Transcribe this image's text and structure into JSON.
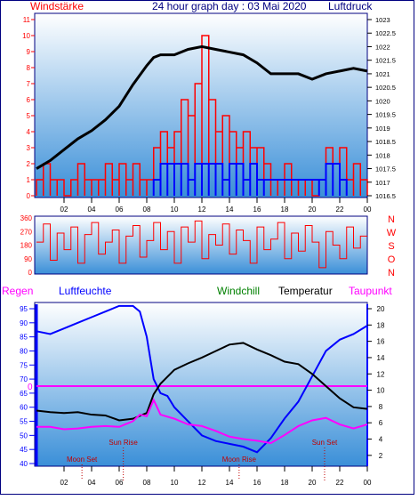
{
  "colors": {
    "frame": "#000080",
    "plot_top": "#ffffff",
    "plot_bottom": "#3a8fd8",
    "wind_red": "#ff0000",
    "wind_blue": "#0000ff",
    "pressure": "#000000",
    "humidity": "#0000ff",
    "temperature": "#000000",
    "dewpoint": "#ff00ff",
    "sun_moon": "#c00000"
  },
  "chart_data": [
    {
      "type": "line",
      "title": "24 hour graph day : 03 Mai 2020",
      "left_label": "Windstärke",
      "right_label": "Luftdruck",
      "x_tick_labels": [
        "02",
        "04",
        "06",
        "08",
        "10",
        "12",
        "14",
        "16",
        "18",
        "20",
        "22",
        "00"
      ],
      "left_ticks": [
        "0",
        "1",
        "2",
        "3",
        "4",
        "5",
        "6",
        "7",
        "8",
        "9",
        "10",
        "11"
      ],
      "left_range": [
        0,
        11
      ],
      "right_ticks": [
        "1016.5",
        "1017",
        "1017.5",
        "1018",
        "1018.5",
        "1019",
        "1019.5",
        "1020",
        "1020.5",
        "1021",
        "1021.5",
        "1022",
        "1022.5",
        "1023"
      ],
      "right_range": [
        1016.5,
        1023
      ],
      "series": [
        {
          "name": "Luftdruck",
          "hours": [
            0,
            1,
            2,
            3,
            4,
            5,
            6,
            7,
            8,
            8.5,
            9,
            10,
            11,
            12,
            13,
            14,
            15,
            16,
            17,
            18,
            19,
            20,
            21,
            22,
            23,
            24
          ],
          "values": [
            1017.5,
            1017.8,
            1018.2,
            1018.6,
            1018.9,
            1019.3,
            1019.8,
            1020.6,
            1021.3,
            1021.6,
            1021.7,
            1021.7,
            1021.9,
            1022.0,
            1021.9,
            1021.8,
            1021.7,
            1021.4,
            1021.0,
            1021.0,
            1021.0,
            1020.8,
            1021.0,
            1021.1,
            1021.2,
            1021.1
          ]
        },
        {
          "name": "Windstärke (red)",
          "hours": [
            0,
            0.5,
            1,
            1.5,
            2,
            2.5,
            3,
            3.5,
            4,
            4.5,
            5,
            5.5,
            6,
            6.5,
            7,
            7.5,
            8,
            8.5,
            9,
            9.5,
            10,
            10.5,
            11,
            11.5,
            12,
            12.5,
            13,
            13.5,
            14,
            14.5,
            15,
            15.5,
            16,
            16.5,
            17,
            17.5,
            18,
            18.5,
            19,
            19.5,
            20,
            20.5,
            21,
            21.5,
            22,
            22.5,
            23,
            23.5
          ],
          "values": [
            1,
            2,
            1,
            1,
            0,
            1,
            2,
            1,
            1,
            1,
            2,
            1,
            2,
            1,
            2,
            1,
            1,
            3,
            4,
            3,
            4,
            6,
            5,
            7,
            10,
            6,
            4,
            5,
            4,
            3,
            4,
            3,
            3,
            2,
            1,
            1,
            2,
            1,
            1,
            1,
            0,
            1,
            3,
            2,
            3,
            1,
            2,
            1
          ]
        },
        {
          "name": "Windstärke (blue)",
          "hours": [
            8.5,
            9,
            9.5,
            10,
            10.5,
            11,
            11.5,
            12,
            12.5,
            13,
            13.5,
            14,
            14.5,
            15,
            15.5,
            16,
            16.5,
            20.5,
            21,
            21.5,
            22
          ],
          "values": [
            1,
            2,
            2,
            2,
            2,
            1,
            2,
            2,
            2,
            2,
            1,
            2,
            2,
            1,
            2,
            1,
            1,
            1,
            2,
            2,
            1
          ]
        }
      ]
    },
    {
      "type": "line",
      "left_ticks": [
        "0",
        "90",
        "180",
        "270",
        "360"
      ],
      "right_labels": [
        "N",
        "W",
        "S",
        "O",
        "N"
      ],
      "y_range": [
        0,
        360
      ],
      "series": [
        {
          "name": "Windrichtung",
          "hours": [
            0,
            0.5,
            1,
            1.5,
            2,
            2.5,
            3,
            3.5,
            4,
            4.5,
            5,
            5.5,
            6,
            6.5,
            7,
            7.5,
            8,
            8.5,
            9,
            9.5,
            10,
            10.5,
            11,
            11.5,
            12,
            12.5,
            13,
            13.5,
            14,
            14.5,
            15,
            15.5,
            16,
            16.5,
            17,
            17.5,
            18,
            18.5,
            19,
            19.5,
            20,
            20.5,
            21,
            21.5,
            22,
            22.5,
            23,
            23.5
          ],
          "values": [
            200,
            320,
            80,
            260,
            150,
            300,
            60,
            250,
            330,
            120,
            200,
            280,
            60,
            240,
            310,
            100,
            210,
            330,
            150,
            270,
            60,
            300,
            200,
            340,
            90,
            250,
            180,
            320,
            120,
            280,
            210,
            60,
            300,
            150,
            220,
            330,
            90,
            260,
            140,
            310,
            200,
            30,
            270,
            180,
            90,
            300,
            160,
            240
          ]
        }
      ]
    },
    {
      "type": "line",
      "legend": [
        "Regen",
        "Luftfeuchte",
        "Windchill",
        "Temperatur",
        "Taupunkt"
      ],
      "x_tick_labels": [
        "02",
        "04",
        "06",
        "08",
        "10",
        "12",
        "14",
        "16",
        "18",
        "20",
        "22",
        "00"
      ],
      "left_ticks": [
        "40",
        "45",
        "50",
        "55",
        "60",
        "65",
        "70",
        "75",
        "80",
        "85",
        "90",
        "95"
      ],
      "left_range": [
        40,
        95
      ],
      "right_ticks": [
        "2",
        "4",
        "6",
        "8",
        "10",
        "12",
        "14",
        "16",
        "18",
        "20"
      ],
      "right_range": [
        1,
        20
      ],
      "rain_value": "0",
      "annotations": [
        {
          "text": "Sun Rise",
          "hour": 6.3
        },
        {
          "text": "Sun Set",
          "hour": 20.9
        },
        {
          "text": "Moon Set",
          "hour": 3.3
        },
        {
          "text": "Moon Rise",
          "hour": 14.7
        }
      ],
      "series": [
        {
          "name": "Luftfeuchte",
          "hours": [
            0,
            1,
            2,
            3,
            4,
            5,
            6,
            7,
            7.5,
            8,
            8.5,
            9,
            9.5,
            10,
            11,
            12,
            13,
            14,
            15,
            16,
            17,
            18,
            19,
            20,
            21,
            22,
            23,
            24
          ],
          "values": [
            87,
            86,
            88,
            90,
            92,
            94,
            96,
            96,
            94,
            85,
            70,
            65,
            64,
            60,
            55,
            50,
            48,
            47,
            46,
            44,
            49,
            56,
            62,
            71,
            80,
            84,
            86,
            89
          ]
        },
        {
          "name": "Temperatur",
          "hours": [
            0,
            1,
            2,
            3,
            4,
            5,
            6,
            7,
            8,
            8.5,
            9,
            10,
            11,
            12,
            13,
            14,
            15,
            16,
            17,
            18,
            19,
            20,
            21,
            22,
            23,
            24
          ],
          "values": [
            7.5,
            7.3,
            7.2,
            7.3,
            7.0,
            6.9,
            6.3,
            6.5,
            7.2,
            9.5,
            10.8,
            12.5,
            13.3,
            14.0,
            14.8,
            15.6,
            15.8,
            15.0,
            14.3,
            13.5,
            13.2,
            12.0,
            10.5,
            9.0,
            7.9,
            7.7
          ]
        },
        {
          "name": "Taupunkt",
          "hours": [
            0,
            1,
            2,
            3,
            4,
            5,
            6,
            7,
            7.5,
            8,
            8.5,
            9,
            10,
            11,
            12,
            13,
            14,
            15,
            16,
            17,
            18,
            19,
            20,
            21,
            22,
            23,
            24
          ],
          "values": [
            5.5,
            5.5,
            5.2,
            5.3,
            5.5,
            5.6,
            5.5,
            6.2,
            7.0,
            6.8,
            8.8,
            7.0,
            6.5,
            5.8,
            5.6,
            5.0,
            4.3,
            4.0,
            3.8,
            3.5,
            4.5,
            5.6,
            6.3,
            6.6,
            5.8,
            5.3,
            5.8
          ]
        }
      ]
    }
  ]
}
